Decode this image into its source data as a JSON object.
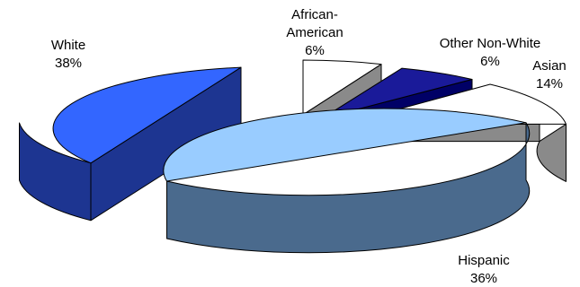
{
  "chart_data": {
    "type": "pie",
    "title": "",
    "style": "3d-exploded",
    "legend": "none",
    "slices": [
      {
        "label": "White",
        "value": 38,
        "pct_label": "38%",
        "top_color": "#3366ff",
        "side_color": "#1d3591"
      },
      {
        "label": "African-American",
        "value": 6,
        "pct_label": "6%",
        "top_color": "#ffffff",
        "side_color": "#8a8a8a"
      },
      {
        "label": "Other Non-White",
        "value": 6,
        "pct_label": "6%",
        "top_color": "#1a1a99",
        "side_color": "#000066"
      },
      {
        "label": "Asian",
        "value": 14,
        "pct_label": "14%",
        "top_color": "#ffffff",
        "side_color": "#8a8a8a"
      },
      {
        "label": "Hispanic",
        "value": 36,
        "pct_label": "36%",
        "top_color": "#99ccff",
        "side_color": "#4a6a8d"
      }
    ]
  }
}
